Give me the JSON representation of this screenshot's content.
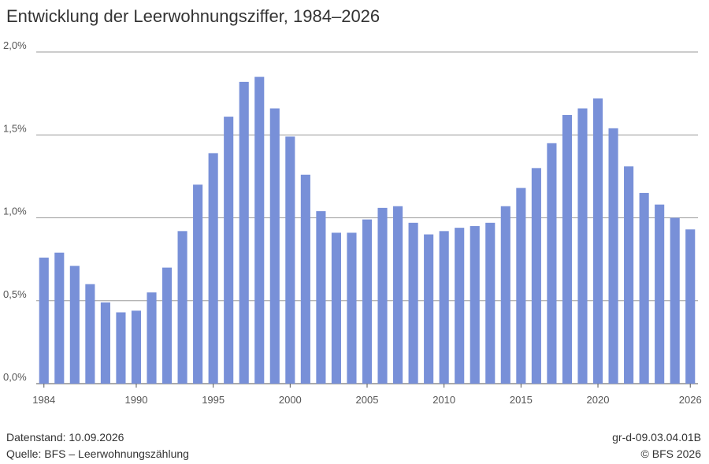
{
  "header": {
    "title": "Entwicklung der Leerwohnungsziffer, 1984–2026"
  },
  "chart_data": {
    "type": "bar",
    "title": "Entwicklung der Leerwohnungsziffer, 1984–2026",
    "xlabel": "",
    "ylabel": "",
    "categories": [
      1984,
      1985,
      1986,
      1987,
      1988,
      1989,
      1990,
      1991,
      1992,
      1993,
      1994,
      1995,
      1996,
      1997,
      1998,
      1999,
      2000,
      2001,
      2002,
      2003,
      2004,
      2005,
      2006,
      2007,
      2008,
      2009,
      2010,
      2011,
      2012,
      2013,
      2014,
      2015,
      2016,
      2017,
      2018,
      2019,
      2020,
      2021,
      2022,
      2023,
      2024,
      2025,
      2026
    ],
    "values": [
      0.76,
      0.79,
      0.71,
      0.6,
      0.49,
      0.43,
      0.44,
      0.55,
      0.7,
      0.92,
      1.2,
      1.39,
      1.61,
      1.82,
      1.85,
      1.66,
      1.49,
      1.26,
      1.04,
      0.91,
      0.91,
      0.99,
      1.06,
      1.07,
      0.97,
      0.9,
      0.92,
      0.94,
      0.95,
      0.97,
      1.07,
      1.18,
      1.3,
      1.45,
      1.62,
      1.66,
      1.72,
      1.54,
      1.31,
      1.15,
      1.08,
      1.0,
      0.93
    ],
    "ylim": [
      0,
      2.0
    ],
    "yticks": [
      "0,0%",
      "0,5%",
      "1,0%",
      "1,5%",
      "2,0%"
    ],
    "xticks": [
      "1984",
      "1990",
      "1995",
      "2000",
      "2005",
      "2010",
      "2015",
      "2020",
      "2026"
    ],
    "grid": true,
    "bar_color": "#7890d8"
  },
  "footer": {
    "datenstand": "Datenstand: 10.09.2026",
    "quelle": "Quelle: BFS – Leerwohnungszählung",
    "code": "gr-d-09.03.04.01B",
    "copyright": "© BFS 2026"
  }
}
